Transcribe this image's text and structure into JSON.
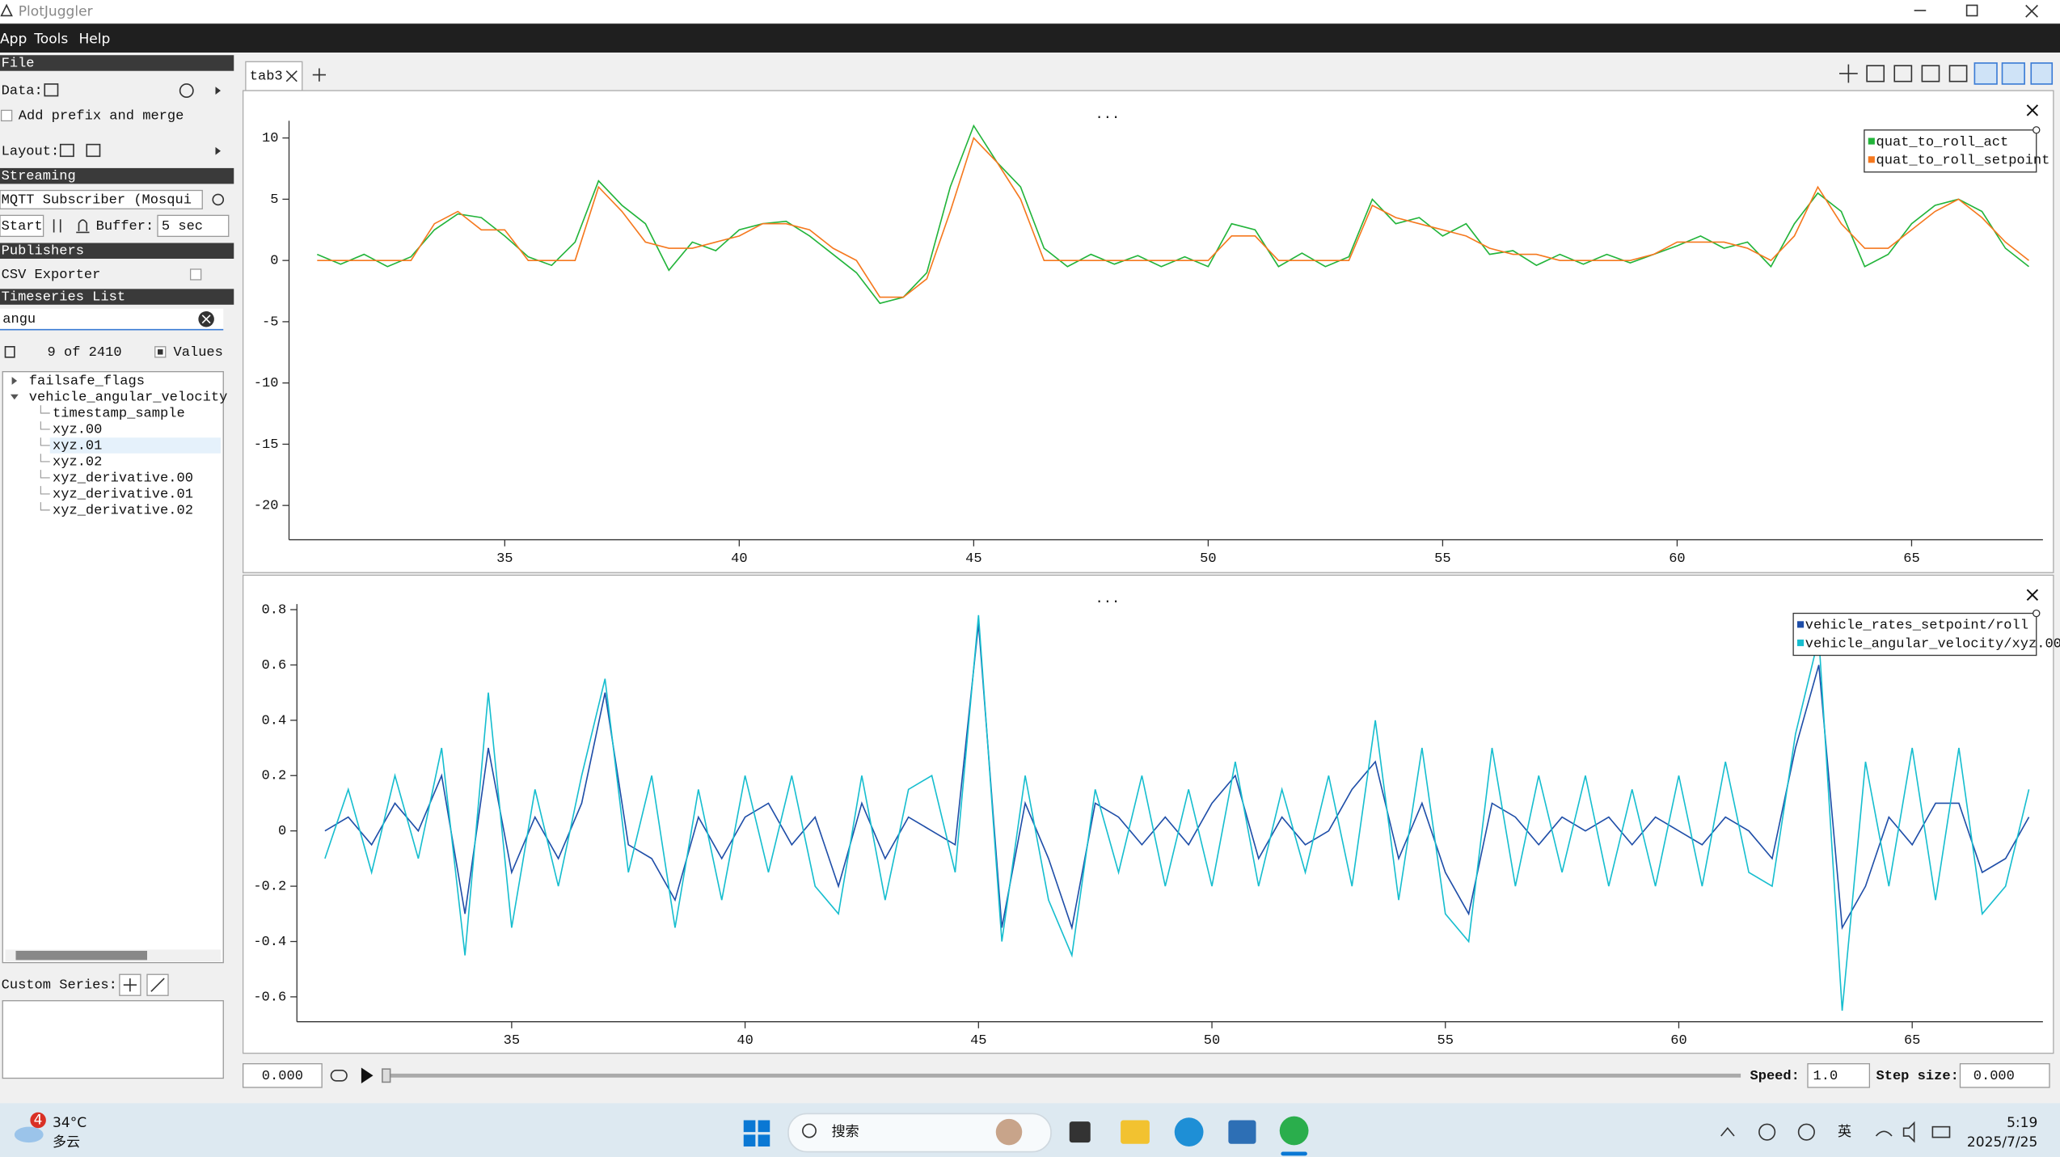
{
  "window": {
    "title": "PlotJuggler"
  },
  "menu": [
    "App",
    "Tools",
    "Help"
  ],
  "sidebar": {
    "file_header": "File",
    "data_label": "Data:",
    "prefix_option": "Add prefix and merge",
    "layout_label": "Layout:",
    "streaming_header": "Streaming",
    "streamer": "MQTT Subscriber (Mosqui",
    "start_button": "Start",
    "buffer_label": "Buffer:",
    "buffer_value": "5 sec",
    "publishers_header": "Publishers",
    "csv_exporter": "CSV Exporter",
    "timeseries_header": "Timeseries List",
    "filter": "angu",
    "count": "9 of 2410",
    "values_option": "Values",
    "tree": [
      {
        "label": "failsafe_flags"
      },
      {
        "label": "vehicle_angular_velocity",
        "children": [
          "timestamp_sample",
          "xyz.00",
          "xyz.01",
          "xyz.02",
          "xyz_derivative.00",
          "xyz_derivative.01",
          "xyz_derivative.02"
        ]
      }
    ],
    "custom_series": "Custom Series:"
  },
  "tabs": [
    "tab3"
  ],
  "plots": [
    {
      "type": "line",
      "title": "...",
      "legend": "top-right",
      "xlim": [
        30.4,
        67.8
      ],
      "ylim": [
        -22.8,
        11.4
      ],
      "xticks": [
        35,
        40,
        45,
        50,
        55,
        60,
        65
      ],
      "yticks": [
        -20,
        -15,
        -10,
        -5,
        0,
        5,
        10
      ],
      "x": [
        31,
        31.5,
        32,
        32.5,
        33,
        33.5,
        34,
        34.5,
        35,
        35.5,
        36,
        36.5,
        37,
        37.5,
        38,
        38.5,
        39,
        39.5,
        40,
        40.5,
        41,
        41.5,
        42,
        42.5,
        43,
        43.5,
        44,
        44.5,
        45,
        45.5,
        46,
        46.5,
        47,
        47.5,
        48,
        48.5,
        49,
        49.5,
        50,
        50.5,
        51,
        51.5,
        52,
        52.5,
        53,
        53.5,
        54,
        54.5,
        55,
        55.5,
        56,
        56.5,
        57,
        57.5,
        58,
        58.5,
        59,
        59.5,
        60,
        60.5,
        61,
        61.5,
        62,
        62.5,
        63,
        63.5,
        64,
        64.5,
        65,
        65.5,
        66,
        66.5,
        67,
        67.5
      ],
      "series": [
        {
          "name": "quat_to_roll_act",
          "color": "#22b43a",
          "values": [
            0.5,
            -0.3,
            0.5,
            -0.5,
            0.3,
            2.5,
            3.8,
            3.5,
            2,
            0.3,
            -0.4,
            1.5,
            6.5,
            4.5,
            3,
            -0.8,
            1.5,
            0.8,
            2.5,
            3,
            3.2,
            2,
            0.5,
            -1,
            -3.5,
            -3,
            -1,
            6,
            11,
            8,
            6,
            1,
            -0.5,
            0.5,
            -0.3,
            0.4,
            -0.5,
            0.3,
            -0.5,
            3,
            2.5,
            -0.5,
            0.6,
            -0.5,
            0.3,
            5,
            3,
            3.5,
            2,
            3,
            0.5,
            0.8,
            -0.4,
            0.5,
            -0.3,
            0.5,
            -0.2,
            0.5,
            1.2,
            2,
            1,
            1.5,
            -0.5,
            3,
            5.5,
            4,
            -0.5,
            0.5,
            3,
            4.5,
            5,
            4,
            1,
            -0.5
          ]
        },
        {
          "name": "quat_to_roll_setpoint",
          "color": "#f5781e",
          "values": [
            0,
            0,
            0,
            0,
            0,
            3,
            4,
            2.5,
            2.5,
            0,
            0,
            0,
            6,
            4,
            1.5,
            1,
            1,
            1.5,
            2,
            3,
            3,
            2.5,
            1,
            0,
            -3,
            -3,
            -1.5,
            4,
            10,
            8,
            5,
            0,
            0,
            0,
            0,
            0,
            0,
            0,
            0,
            2,
            2,
            0,
            0,
            0,
            0,
            4.5,
            3.5,
            3,
            2.5,
            2,
            1,
            0.5,
            0.5,
            0,
            0,
            0,
            0,
            0.5,
            1.5,
            1.5,
            1.5,
            1,
            0,
            2,
            6,
            3,
            1,
            1,
            2.5,
            4,
            5,
            3.5,
            1.5,
            0
          ]
        }
      ]
    },
    {
      "type": "line",
      "title": "...",
      "legend": "top-right",
      "xlim": [
        30.4,
        67.8
      ],
      "ylim": [
        -0.69,
        0.82
      ],
      "xticks": [
        35,
        40,
        45,
        50,
        55,
        60,
        65
      ],
      "yticks": [
        -0.6,
        -0.4,
        -0.2,
        0,
        0.2,
        0.4,
        0.6,
        0.8
      ],
      "x": [
        31,
        31.5,
        32,
        32.5,
        33,
        33.5,
        34,
        34.5,
        35,
        35.5,
        36,
        36.5,
        37,
        37.5,
        38,
        38.5,
        39,
        39.5,
        40,
        40.5,
        41,
        41.5,
        42,
        42.5,
        43,
        43.5,
        44,
        44.5,
        45,
        45.5,
        46,
        46.5,
        47,
        47.5,
        48,
        48.5,
        49,
        49.5,
        50,
        50.5,
        51,
        51.5,
        52,
        52.5,
        53,
        53.5,
        54,
        54.5,
        55,
        55.5,
        56,
        56.5,
        57,
        57.5,
        58,
        58.5,
        59,
        59.5,
        60,
        60.5,
        61,
        61.5,
        62,
        62.5,
        63,
        63.5,
        64,
        64.5,
        65,
        65.5,
        66,
        66.5,
        67,
        67.5
      ],
      "series": [
        {
          "name": "vehicle_rates_setpoint/roll",
          "color": "#1f4ea8",
          "values": [
            0,
            0.05,
            -0.05,
            0.1,
            0,
            0.2,
            -0.3,
            0.3,
            -0.15,
            0.05,
            -0.1,
            0.1,
            0.5,
            -0.05,
            -0.1,
            -0.25,
            0.05,
            -0.1,
            0.05,
            0.1,
            -0.05,
            0.05,
            -0.2,
            0.1,
            -0.1,
            0.05,
            0,
            -0.05,
            0.75,
            -0.35,
            0.1,
            -0.1,
            -0.35,
            0.1,
            0.05,
            -0.05,
            0.05,
            -0.05,
            0.1,
            0.2,
            -0.1,
            0.05,
            -0.05,
            0,
            0.15,
            0.25,
            -0.1,
            0.1,
            -0.15,
            -0.3,
            0.1,
            0.05,
            -0.05,
            0.05,
            0,
            0.05,
            -0.05,
            0.05,
            0,
            -0.05,
            0.05,
            0,
            -0.1,
            0.3,
            0.6,
            -0.35,
            -0.2,
            0.05,
            -0.05,
            0.1,
            0.1,
            -0.15,
            -0.1,
            0.05
          ]
        },
        {
          "name": "vehicle_angular_velocity/xyz.00",
          "color": "#17becf",
          "values": [
            -0.1,
            0.15,
            -0.15,
            0.2,
            -0.1,
            0.3,
            -0.45,
            0.5,
            -0.35,
            0.15,
            -0.2,
            0.2,
            0.55,
            -0.15,
            0.2,
            -0.35,
            0.15,
            -0.25,
            0.2,
            -0.15,
            0.2,
            -0.2,
            -0.3,
            0.2,
            -0.25,
            0.15,
            0.2,
            -0.15,
            0.78,
            -0.4,
            0.2,
            -0.25,
            -0.45,
            0.15,
            -0.15,
            0.2,
            -0.2,
            0.15,
            -0.2,
            0.25,
            -0.2,
            0.15,
            -0.15,
            0.2,
            -0.2,
            0.4,
            -0.25,
            0.3,
            -0.3,
            -0.4,
            0.3,
            -0.2,
            0.2,
            -0.15,
            0.2,
            -0.2,
            0.15,
            -0.2,
            0.2,
            -0.2,
            0.25,
            -0.15,
            -0.2,
            0.35,
            0.7,
            -0.65,
            0.25,
            -0.2,
            0.3,
            -0.25,
            0.3,
            -0.3,
            -0.2,
            0.15
          ]
        }
      ]
    }
  ],
  "playback": {
    "time": "0.000",
    "speed_label": "Speed:",
    "speed": "1.0",
    "step_label": "Step size:",
    "step": "0.000"
  },
  "taskbar": {
    "badge": 4,
    "temperature": "34°C",
    "weather": "多云",
    "search": "搜索",
    "ime": "英",
    "time": "5:19",
    "date": "2025/7/25"
  }
}
